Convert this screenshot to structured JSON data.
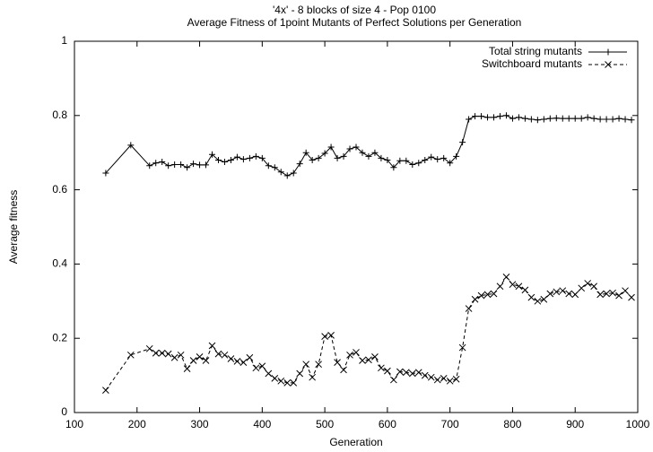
{
  "chart_data": {
    "type": "line",
    "title": "'4x' - 8 blocks of size 4 - Pop 0100",
    "subtitle": "Average Fitness of 1point Mutants of Perfect Solutions per Generation",
    "x_label": "Generation",
    "y_label": "Average fitness",
    "x": [
      150,
      190,
      220,
      230,
      240,
      250,
      260,
      270,
      280,
      290,
      300,
      310,
      320,
      330,
      340,
      350,
      360,
      370,
      380,
      390,
      400,
      410,
      420,
      430,
      440,
      450,
      460,
      470,
      480,
      490,
      500,
      510,
      520,
      530,
      540,
      550,
      560,
      570,
      580,
      590,
      600,
      610,
      620,
      630,
      640,
      650,
      660,
      670,
      680,
      690,
      700,
      710,
      720,
      730,
      740,
      750,
      760,
      770,
      780,
      790,
      800,
      810,
      820,
      830,
      840,
      850,
      860,
      870,
      880,
      890,
      900,
      910,
      920,
      930,
      940,
      950,
      960,
      970,
      980,
      990
    ],
    "series": [
      {
        "name": "Total string mutants",
        "color": "#000000",
        "line_style": "solid",
        "marker": "plus",
        "values": [
          0.645,
          0.72,
          0.665,
          0.672,
          0.675,
          0.665,
          0.668,
          0.668,
          0.66,
          0.67,
          0.667,
          0.667,
          0.695,
          0.68,
          0.675,
          0.68,
          0.688,
          0.682,
          0.685,
          0.69,
          0.685,
          0.665,
          0.66,
          0.648,
          0.638,
          0.645,
          0.67,
          0.7,
          0.68,
          0.685,
          0.698,
          0.715,
          0.685,
          0.69,
          0.71,
          0.715,
          0.7,
          0.69,
          0.7,
          0.685,
          0.68,
          0.66,
          0.678,
          0.678,
          0.668,
          0.672,
          0.68,
          0.688,
          0.682,
          0.685,
          0.672,
          0.69,
          0.728,
          0.79,
          0.798,
          0.798,
          0.795,
          0.795,
          0.798,
          0.8,
          0.792,
          0.795,
          0.792,
          0.79,
          0.788,
          0.79,
          0.792,
          0.793,
          0.792,
          0.792,
          0.792,
          0.792,
          0.795,
          0.792,
          0.79,
          0.79,
          0.79,
          0.792,
          0.79,
          0.788
        ]
      },
      {
        "name": "Switchboard mutants",
        "color": "#000000",
        "line_style": "dashed",
        "marker": "cross",
        "values": [
          0.06,
          0.155,
          0.172,
          0.16,
          0.16,
          0.158,
          0.148,
          0.155,
          0.118,
          0.14,
          0.15,
          0.14,
          0.18,
          0.158,
          0.155,
          0.145,
          0.138,
          0.135,
          0.148,
          0.12,
          0.125,
          0.105,
          0.092,
          0.085,
          0.08,
          0.08,
          0.105,
          0.13,
          0.095,
          0.13,
          0.205,
          0.208,
          0.135,
          0.115,
          0.155,
          0.162,
          0.14,
          0.142,
          0.15,
          0.12,
          0.112,
          0.088,
          0.11,
          0.108,
          0.105,
          0.108,
          0.1,
          0.095,
          0.088,
          0.092,
          0.085,
          0.09,
          0.175,
          0.28,
          0.305,
          0.315,
          0.318,
          0.32,
          0.34,
          0.365,
          0.345,
          0.34,
          0.33,
          0.31,
          0.3,
          0.305,
          0.32,
          0.325,
          0.328,
          0.32,
          0.318,
          0.335,
          0.348,
          0.34,
          0.318,
          0.32,
          0.322,
          0.315,
          0.328,
          0.31
        ]
      }
    ],
    "xlim": [
      100,
      1000
    ],
    "xticks": [
      100,
      200,
      300,
      400,
      500,
      600,
      700,
      800,
      900,
      1000
    ],
    "ylim": [
      0,
      1
    ],
    "yticks": [
      0,
      0.2,
      0.4,
      0.6,
      0.8,
      1
    ],
    "grid": false,
    "legend_position": "top-right"
  }
}
